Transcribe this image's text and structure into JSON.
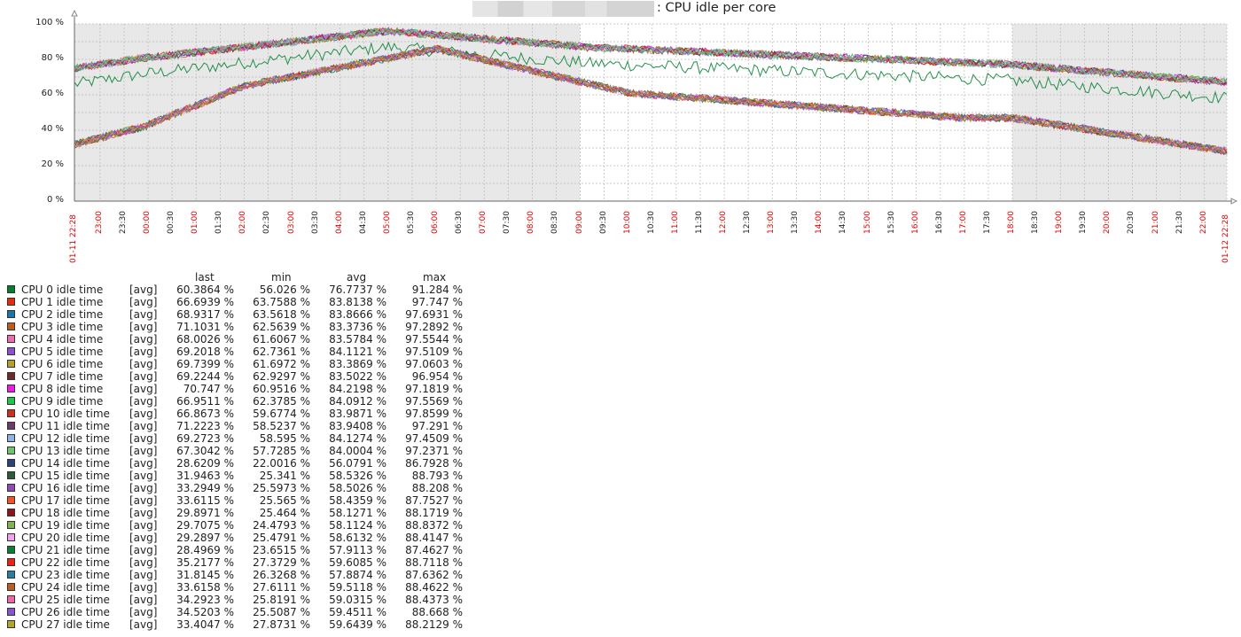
{
  "chart_data": {
    "type": "line",
    "title": ": CPU idle per core",
    "y_ticks": [
      "0 %",
      "20 %",
      "40 %",
      "60 %",
      "80 %",
      "100 %"
    ],
    "ylim": [
      0,
      100
    ],
    "grid": true,
    "x_range": [
      "01-11 22:28",
      "01-12 22:28"
    ],
    "x_ticks": [
      {
        "label": "01-11 22:28",
        "red": true
      },
      {
        "label": "23:00",
        "red": true
      },
      {
        "label": "23:30",
        "red": false
      },
      {
        "label": "00:00",
        "red": true
      },
      {
        "label": "00:30",
        "red": false
      },
      {
        "label": "01:00",
        "red": true
      },
      {
        "label": "01:30",
        "red": false
      },
      {
        "label": "02:00",
        "red": true
      },
      {
        "label": "02:30",
        "red": false
      },
      {
        "label": "03:00",
        "red": true
      },
      {
        "label": "03:30",
        "red": false
      },
      {
        "label": "04:00",
        "red": true
      },
      {
        "label": "04:30",
        "red": false
      },
      {
        "label": "05:00",
        "red": true
      },
      {
        "label": "05:30",
        "red": false
      },
      {
        "label": "06:00",
        "red": true
      },
      {
        "label": "06:30",
        "red": false
      },
      {
        "label": "07:00",
        "red": true
      },
      {
        "label": "07:30",
        "red": false
      },
      {
        "label": "08:00",
        "red": true
      },
      {
        "label": "08:30",
        "red": false
      },
      {
        "label": "09:00",
        "red": true
      },
      {
        "label": "09:30",
        "red": false
      },
      {
        "label": "10:00",
        "red": true
      },
      {
        "label": "10:30",
        "red": false
      },
      {
        "label": "11:00",
        "red": true
      },
      {
        "label": "11:30",
        "red": false
      },
      {
        "label": "12:00",
        "red": true
      },
      {
        "label": "12:30",
        "red": false
      },
      {
        "label": "13:00",
        "red": true
      },
      {
        "label": "13:30",
        "red": false
      },
      {
        "label": "14:00",
        "red": true
      },
      {
        "label": "14:30",
        "red": false
      },
      {
        "label": "15:00",
        "red": true
      },
      {
        "label": "15:30",
        "red": false
      },
      {
        "label": "16:00",
        "red": true
      },
      {
        "label": "16:30",
        "red": false
      },
      {
        "label": "17:00",
        "red": true
      },
      {
        "label": "17:30",
        "red": false
      },
      {
        "label": "18:00",
        "red": true
      },
      {
        "label": "18:30",
        "red": false
      },
      {
        "label": "19:00",
        "red": true
      },
      {
        "label": "19:30",
        "red": false
      },
      {
        "label": "20:00",
        "red": true
      },
      {
        "label": "20:30",
        "red": false
      },
      {
        "label": "21:00",
        "red": true
      },
      {
        "label": "21:30",
        "red": false
      },
      {
        "label": "22:00",
        "red": true
      },
      {
        "label": "01-12 22:28",
        "red": true
      }
    ],
    "columns": [
      "last",
      "min",
      "avg",
      "max"
    ],
    "series": [
      {
        "name": "CPU 0 idle time",
        "color": "#007e2e",
        "fn": "[avg]",
        "last": "60.3864 %",
        "min": "56.026 %",
        "avg": "76.7737 %",
        "max": "91.284 %",
        "group": "high"
      },
      {
        "name": "CPU 1 idle time",
        "color": "#e62c0f",
        "fn": "[avg]",
        "last": "66.6939 %",
        "min": "63.7588 %",
        "avg": "83.8138 %",
        "max": "97.747 %",
        "group": "high"
      },
      {
        "name": "CPU 2 idle time",
        "color": "#1b75a8",
        "fn": "[avg]",
        "last": "68.9317 %",
        "min": "63.5618 %",
        "avg": "83.8666 %",
        "max": "97.6931 %",
        "group": "high"
      },
      {
        "name": "CPU 3 idle time",
        "color": "#bd5f1c",
        "fn": "[avg]",
        "last": "71.1031 %",
        "min": "62.5639 %",
        "avg": "83.3736 %",
        "max": "97.2892 %",
        "group": "high"
      },
      {
        "name": "CPU 4 idle time",
        "color": "#ef6bab",
        "fn": "[avg]",
        "last": "68.0026 %",
        "min": "61.6067 %",
        "avg": "83.5784 %",
        "max": "97.5544 %",
        "group": "high"
      },
      {
        "name": "CPU 5 idle time",
        "color": "#8a52d3",
        "fn": "[avg]",
        "last": "69.2018 %",
        "min": "62.7361 %",
        "avg": "84.1121 %",
        "max": "97.5109 %",
        "group": "high"
      },
      {
        "name": "CPU 6 idle time",
        "color": "#b5a22e",
        "fn": "[avg]",
        "last": "69.7399 %",
        "min": "61.6972 %",
        "avg": "83.3869 %",
        "max": "97.0603 %",
        "group": "high"
      },
      {
        "name": "CPU 7 idle time",
        "color": "#6f2a2a",
        "fn": "[avg]",
        "last": "69.2244 %",
        "min": "62.9297 %",
        "avg": "83.5022 %",
        "max": "96.954 %",
        "group": "high"
      },
      {
        "name": "CPU 8 idle time",
        "color": "#f019e6",
        "fn": "[avg]",
        "last": "70.747 %",
        "min": "60.9516 %",
        "avg": "84.2198 %",
        "max": "97.1819 %",
        "group": "high"
      },
      {
        "name": "CPU 9 idle time",
        "color": "#22c64a",
        "fn": "[avg]",
        "last": "66.9511 %",
        "min": "62.3785 %",
        "avg": "84.0912 %",
        "max": "97.5569 %",
        "group": "high"
      },
      {
        "name": "CPU 10 idle time",
        "color": "#c9311b",
        "fn": "[avg]",
        "last": "66.8673 %",
        "min": "59.6774 %",
        "avg": "83.9871 %",
        "max": "97.8599 %",
        "group": "high"
      },
      {
        "name": "CPU 11 idle time",
        "color": "#6e3a6a",
        "fn": "[avg]",
        "last": "71.2223 %",
        "min": "58.5237 %",
        "avg": "83.9408 %",
        "max": "97.291 %",
        "group": "high"
      },
      {
        "name": "CPU 12 idle time",
        "color": "#8db3ea",
        "fn": "[avg]",
        "last": "69.2723 %",
        "min": "58.595 %",
        "avg": "84.1274 %",
        "max": "97.4509 %",
        "group": "high"
      },
      {
        "name": "CPU 13 idle time",
        "color": "#6fc46f",
        "fn": "[avg]",
        "last": "67.3042 %",
        "min": "57.7285 %",
        "avg": "84.0004 %",
        "max": "97.2371 %",
        "group": "high"
      },
      {
        "name": "CPU 14 idle time",
        "color": "#29427c",
        "fn": "[avg]",
        "last": "28.6209 %",
        "min": "22.0016 %",
        "avg": "56.0791 %",
        "max": "86.7928 %",
        "group": "low"
      },
      {
        "name": "CPU 15 idle time",
        "color": "#2e5a3c",
        "fn": "[avg]",
        "last": "31.9463 %",
        "min": "25.341 %",
        "avg": "58.5326 %",
        "max": "88.793 %",
        "group": "low"
      },
      {
        "name": "CPU 16 idle time",
        "color": "#9048b8",
        "fn": "[avg]",
        "last": "33.2949 %",
        "min": "25.5973 %",
        "avg": "58.5026 %",
        "max": "88.208 %",
        "group": "low"
      },
      {
        "name": "CPU 17 idle time",
        "color": "#f25326",
        "fn": "[avg]",
        "last": "33.6115 %",
        "min": "25.565 %",
        "avg": "58.4359 %",
        "max": "87.7527 %",
        "group": "low"
      },
      {
        "name": "CPU 18 idle time",
        "color": "#8c1520",
        "fn": "[avg]",
        "last": "29.8971 %",
        "min": "25.464 %",
        "avg": "58.1271 %",
        "max": "88.1719 %",
        "group": "low"
      },
      {
        "name": "CPU 19 idle time",
        "color": "#82b350",
        "fn": "[avg]",
        "last": "29.7075 %",
        "min": "24.4793 %",
        "avg": "58.1124 %",
        "max": "88.8372 %",
        "group": "low"
      },
      {
        "name": "CPU 20 idle time",
        "color": "#f3a1ee",
        "fn": "[avg]",
        "last": "29.2897 %",
        "min": "25.4791 %",
        "avg": "58.6132 %",
        "max": "88.4147 %",
        "group": "low"
      },
      {
        "name": "CPU 21 idle time",
        "color": "#0c7e34",
        "fn": "[avg]",
        "last": "28.4969 %",
        "min": "23.6515 %",
        "avg": "57.9113 %",
        "max": "87.4627 %",
        "group": "low"
      },
      {
        "name": "CPU 22 idle time",
        "color": "#f2200f",
        "fn": "[avg]",
        "last": "35.2177 %",
        "min": "27.3729 %",
        "avg": "59.6085 %",
        "max": "88.7118 %",
        "group": "low"
      },
      {
        "name": "CPU 23 idle time",
        "color": "#2a7ea3",
        "fn": "[avg]",
        "last": "31.8145 %",
        "min": "26.3268 %",
        "avg": "57.8874 %",
        "max": "87.6362 %",
        "group": "low"
      },
      {
        "name": "CPU 24 idle time",
        "color": "#b85e1f",
        "fn": "[avg]",
        "last": "33.6158 %",
        "min": "27.6111 %",
        "avg": "59.5118 %",
        "max": "88.4622 %",
        "group": "low"
      },
      {
        "name": "CPU 25 idle time",
        "color": "#ee67a4",
        "fn": "[avg]",
        "last": "34.2923 %",
        "min": "25.8191 %",
        "avg": "59.0315 %",
        "max": "88.4373 %",
        "group": "low"
      },
      {
        "name": "CPU 26 idle time",
        "color": "#8755d4",
        "fn": "[avg]",
        "last": "34.5203 %",
        "min": "25.5087 %",
        "avg": "59.4511 %",
        "max": "88.668 %",
        "group": "low"
      },
      {
        "name": "CPU 27 idle time",
        "color": "#b1a52d",
        "fn": "[avg]",
        "last": "33.4047 %",
        "min": "27.8731 %",
        "avg": "59.6439 %",
        "max": "88.2129 %",
        "group": "low"
      }
    ]
  },
  "colors": {
    "grid": "#b9b9b9",
    "shade": "#e8e8e8",
    "red_tick": "#e00000"
  }
}
